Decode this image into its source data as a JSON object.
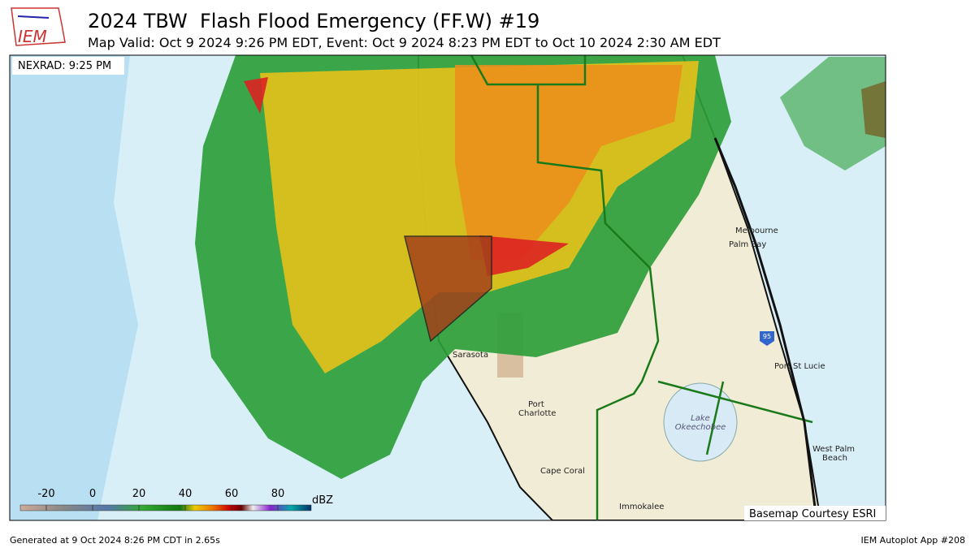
{
  "header": {
    "logo": "IEM",
    "title": "2024 TBW  Flash Flood Emergency (FF.W) #19",
    "subtitle": "Map Valid: Oct 9 2024 9:26 PM EDT, Event: Oct 9 2024 8:23 PM EDT to Oct 10 2024 2:30 AM EDT"
  },
  "map": {
    "radar_time": "NEXRAD: 9:25 PM",
    "places": [
      "Melbourne",
      "Palm Bay",
      "Sarasota",
      "Port",
      "Charlotte",
      "Cape Coral",
      "Port St Lucie",
      "West Palm",
      "Beach",
      "Immokalee",
      "Lake",
      "Okeechobee"
    ],
    "highway": "95",
    "basemap_credit": "Basemap Courtesy ESRI"
  },
  "legend": {
    "ticks": [
      "-20",
      "0",
      "20",
      "40",
      "60",
      "80"
    ],
    "unit": "dBZ"
  },
  "footer": {
    "generated": "Generated at 9 Oct 2024 8:26 PM CDT in 2.65s",
    "app": "IEM Autoplot App #208"
  }
}
